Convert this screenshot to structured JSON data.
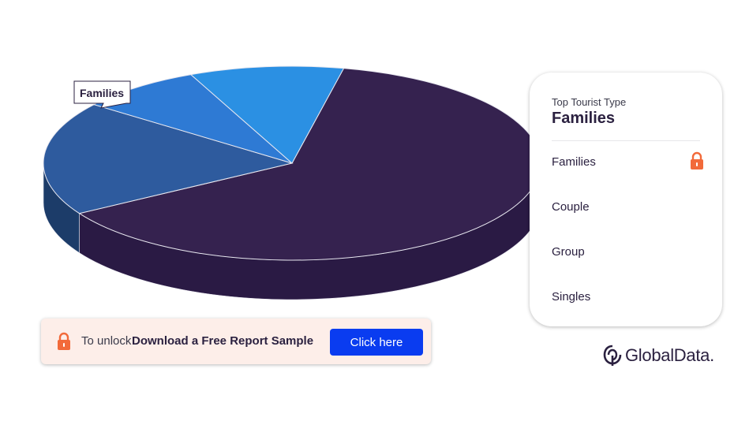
{
  "chart_data": {
    "type": "pie",
    "style": "3d",
    "categories": [
      "Families",
      "Couple",
      "Group",
      "Singles"
    ],
    "values": [
      63,
      19,
      8,
      10
    ],
    "value_unit": "%",
    "colors": {
      "Families": "#35224f",
      "Couple": "#2e5b9e",
      "Group": "#2e7ad4",
      "Singles": "#2b90e3"
    },
    "side_colors": {
      "Families": "#2a1a44",
      "Couple": "#1c3c69",
      "Group": "#163a66",
      "Singles": "#13375e"
    },
    "callout": "Families"
  },
  "legend": {
    "caption": "Top Tourist Type",
    "top_value": "Families",
    "items": [
      {
        "label": "Families",
        "locked": true
      },
      {
        "label": "Couple"
      },
      {
        "label": "Group"
      },
      {
        "label": "Singles"
      }
    ]
  },
  "unlock": {
    "prefix": "To unlock",
    "strong": "Download a Free Report Sample",
    "button": "Click here"
  },
  "brand": {
    "logo_text": "GlobalData.",
    "accent": "#f26a3a",
    "button_color": "#0a3cf0"
  }
}
